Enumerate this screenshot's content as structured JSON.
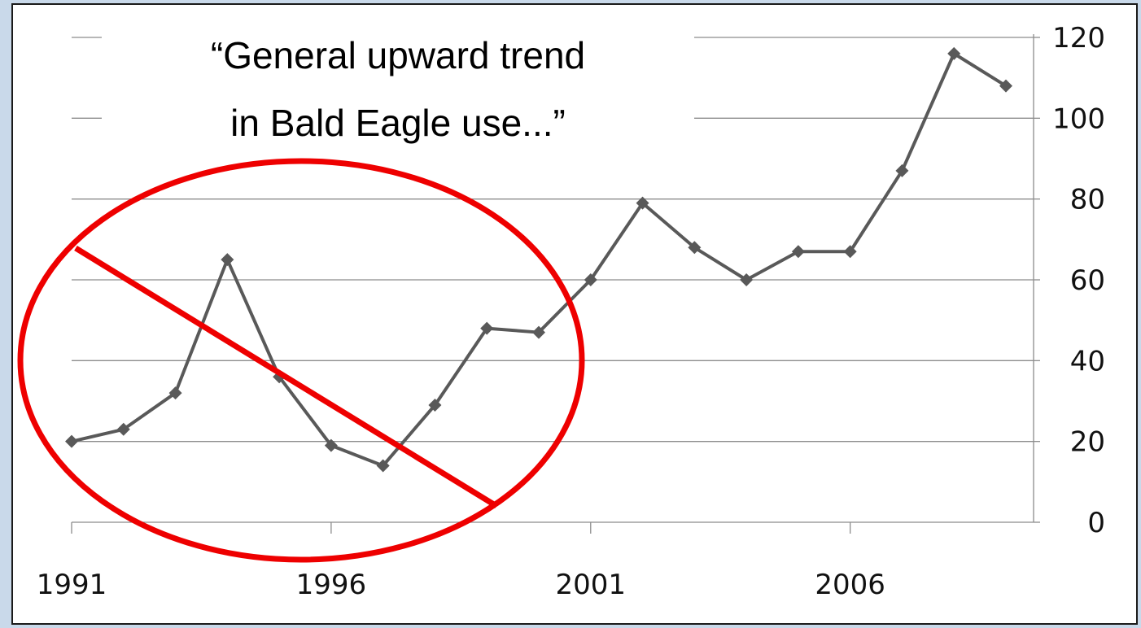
{
  "annotation": {
    "line1": "“General upward trend",
    "line2": "in Bald Eagle use...”",
    "mark_color": "#ee0000"
  },
  "chart_data": {
    "type": "line",
    "title": "",
    "xlabel": "",
    "ylabel": "",
    "x": [
      1991,
      1992,
      1993,
      1994,
      1995,
      1996,
      1997,
      1998,
      1999,
      2000,
      2001,
      2002,
      2003,
      2004,
      2005,
      2006,
      2007,
      2008,
      2009
    ],
    "series": [
      {
        "values": [
          20,
          23,
          32,
          65,
          36,
          19,
          14,
          29,
          48,
          47,
          60,
          79,
          68,
          60,
          67,
          67,
          87,
          116,
          108
        ]
      }
    ],
    "xticks": [
      "1991",
      "1996",
      "2001",
      "2006"
    ],
    "yticks": [
      "0",
      "20",
      "40",
      "60",
      "80",
      "100",
      "120"
    ],
    "xlim": [
      1991,
      2009
    ],
    "ylim": [
      0,
      120
    ],
    "y_axis_side": "right",
    "grid": "horizontal",
    "line_color": "#595959"
  }
}
